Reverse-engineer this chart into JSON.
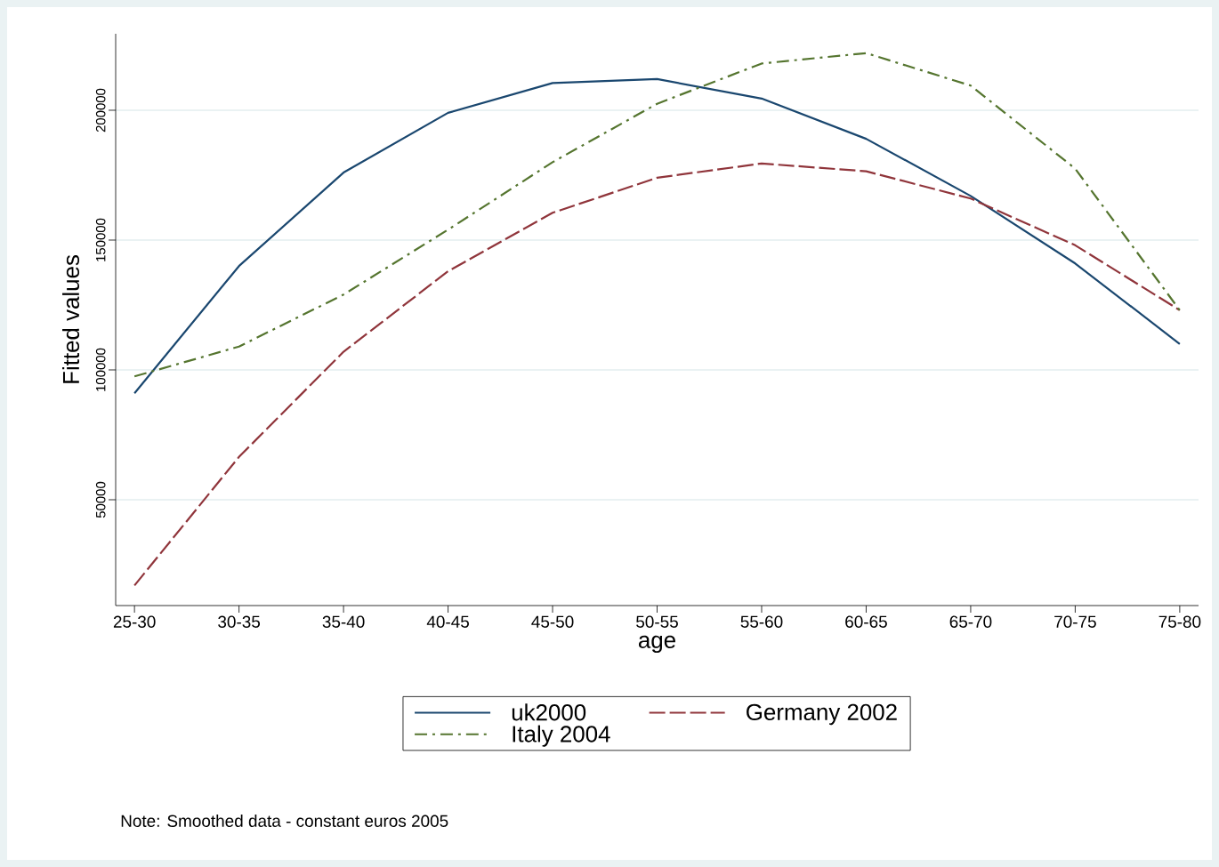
{
  "chart_data": {
    "type": "line",
    "xlabel": "age",
    "ylabel": "Fitted values",
    "categories": [
      "25-30",
      "30-35",
      "35-40",
      "40-45",
      "45-50",
      "50-55",
      "55-60",
      "60-65",
      "65-70",
      "70-75",
      "75-80"
    ],
    "series": [
      {
        "name": "uk2000",
        "color": "#1a476f",
        "line_style": "solid",
        "values": [
          91000,
          140000,
          176000,
          199000,
          210500,
          212000,
          204500,
          189000,
          167000,
          141000,
          110000
        ]
      },
      {
        "name": "Germany 2002",
        "color": "#90353b",
        "line_style": "dashed",
        "values": [
          17000,
          66500,
          107000,
          138000,
          160500,
          174000,
          179500,
          176500,
          166000,
          148000,
          123000
        ]
      },
      {
        "name": "Italy 2004",
        "color": "#55752f",
        "line_style": "dashdot",
        "values": [
          97500,
          109000,
          129000,
          154000,
          180000,
          202500,
          218000,
          222000,
          209500,
          177500,
          123000
        ]
      }
    ],
    "ylim": [
      9250,
      229450
    ],
    "yticks": [
      50000,
      100000,
      150000,
      200000
    ],
    "grid": "y",
    "legend": "bottom",
    "marker": "none",
    "annotations": [
      "Note: Smoothed data - constant euros 2005"
    ]
  }
}
